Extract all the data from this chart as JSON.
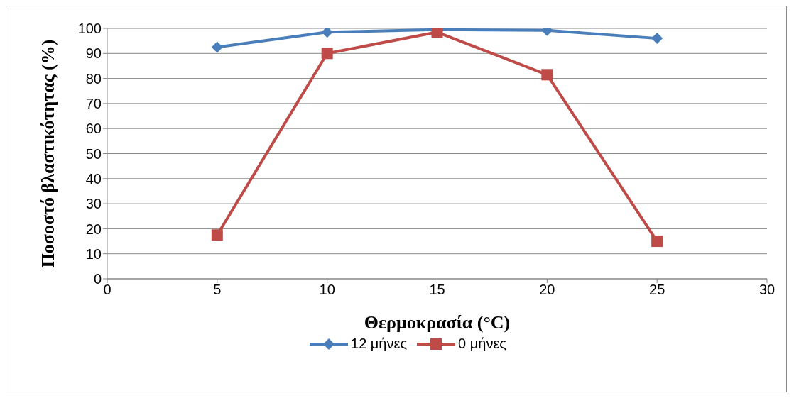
{
  "chart_data": {
    "type": "line",
    "xlabel": "Θερμοκρασία (°C)",
    "ylabel": "Ποσοστό βλαστικότητας (%)",
    "x": [
      5,
      10,
      15,
      20,
      25
    ],
    "series": [
      {
        "name": "12 μήνες",
        "color": "#4a7ebb",
        "marker": "diamond",
        "values": [
          92.5,
          98.5,
          99.5,
          99.2,
          96
        ]
      },
      {
        "name": "0 μήνες",
        "color": "#be4b48",
        "marker": "square",
        "values": [
          17.5,
          90,
          98.5,
          81.5,
          15
        ]
      }
    ],
    "xlim": [
      0,
      30
    ],
    "xticks": [
      0,
      5,
      10,
      15,
      20,
      25,
      30
    ],
    "ylim": [
      0,
      100
    ],
    "yticks": [
      0,
      10,
      20,
      30,
      40,
      50,
      60,
      70,
      80,
      90,
      100
    ],
    "grid": "y",
    "legend": "bottom",
    "line_style": "solid"
  }
}
